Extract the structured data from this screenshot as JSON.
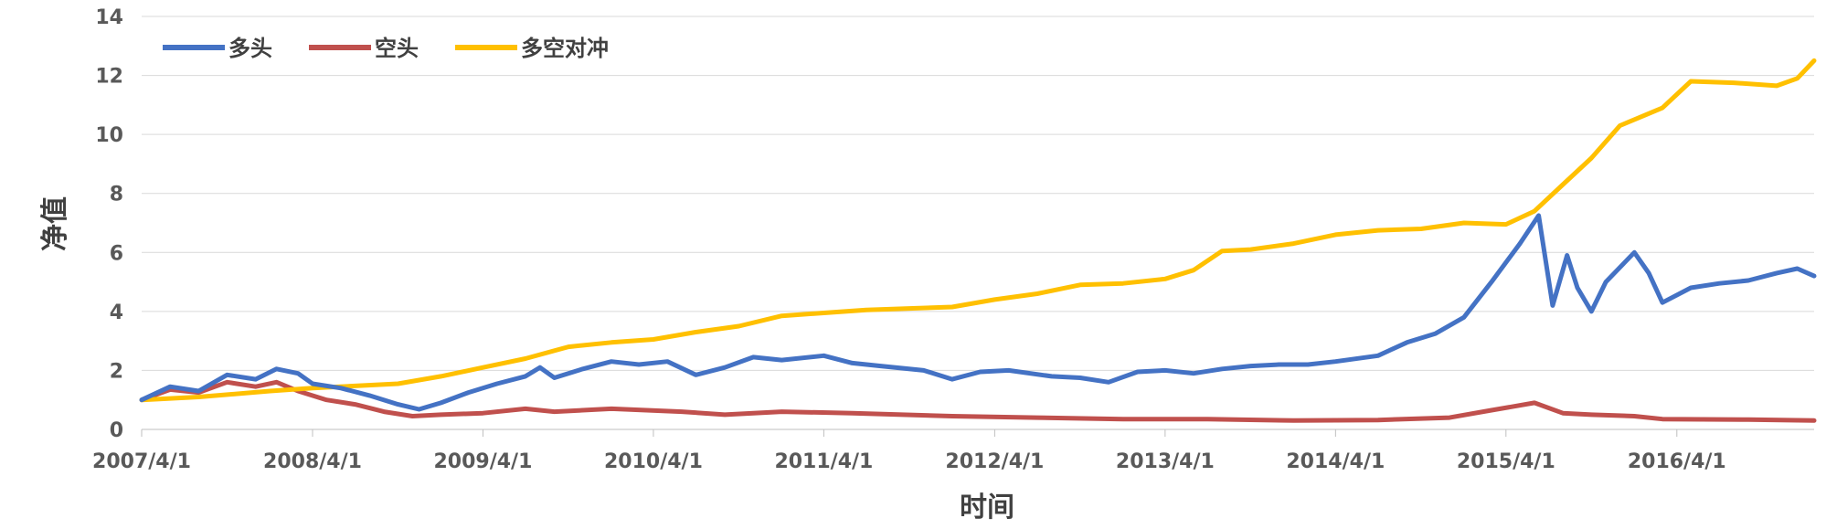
{
  "chart_data": {
    "type": "line",
    "title": "",
    "xlabel": "时间",
    "ylabel": "净值",
    "ylim": [
      0,
      14
    ],
    "yticks": [
      0,
      2,
      4,
      6,
      8,
      10,
      12,
      14
    ],
    "xticks": [
      "2007/4/1",
      "2008/4/1",
      "2009/4/1",
      "2010/4/1",
      "2011/4/1",
      "2012/4/1",
      "2013/4/1",
      "2014/4/1",
      "2015/4/1",
      "2016/4/1"
    ],
    "xlim": [
      "2007/4/1",
      "2017/1/20"
    ],
    "grid": "horizontal",
    "legend": "top-left",
    "series": [
      {
        "name": "多头",
        "color": "#4472C4",
        "points": [
          [
            "2007/4/1",
            1.0
          ],
          [
            "2007/6/1",
            1.45
          ],
          [
            "2007/8/1",
            1.3
          ],
          [
            "2007/10/1",
            1.85
          ],
          [
            "2007/12/1",
            1.7
          ],
          [
            "2008/1/15",
            2.05
          ],
          [
            "2008/3/1",
            1.9
          ],
          [
            "2008/4/1",
            1.55
          ],
          [
            "2008/6/1",
            1.4
          ],
          [
            "2008/8/1",
            1.15
          ],
          [
            "2008/10/1",
            0.85
          ],
          [
            "2008/11/15",
            0.68
          ],
          [
            "2009/1/1",
            0.9
          ],
          [
            "2009/3/1",
            1.25
          ],
          [
            "2009/5/1",
            1.55
          ],
          [
            "2009/7/1",
            1.8
          ],
          [
            "2009/8/1",
            2.1
          ],
          [
            "2009/9/1",
            1.75
          ],
          [
            "2009/11/1",
            2.05
          ],
          [
            "2010/1/1",
            2.3
          ],
          [
            "2010/3/1",
            2.2
          ],
          [
            "2010/5/1",
            2.3
          ],
          [
            "2010/7/1",
            1.85
          ],
          [
            "2010/9/1",
            2.1
          ],
          [
            "2010/11/1",
            2.45
          ],
          [
            "2011/1/1",
            2.35
          ],
          [
            "2011/4/1",
            2.5
          ],
          [
            "2011/6/1",
            2.25
          ],
          [
            "2011/8/1",
            2.15
          ],
          [
            "2011/11/1",
            2.0
          ],
          [
            "2012/1/1",
            1.7
          ],
          [
            "2012/3/1",
            1.95
          ],
          [
            "2012/5/1",
            2.0
          ],
          [
            "2012/8/1",
            1.8
          ],
          [
            "2012/10/1",
            1.75
          ],
          [
            "2012/12/1",
            1.6
          ],
          [
            "2013/2/1",
            1.95
          ],
          [
            "2013/4/1",
            2.0
          ],
          [
            "2013/6/1",
            1.9
          ],
          [
            "2013/8/1",
            2.05
          ],
          [
            "2013/10/1",
            2.15
          ],
          [
            "2013/12/1",
            2.2
          ],
          [
            "2014/2/1",
            2.2
          ],
          [
            "2014/4/1",
            2.3
          ],
          [
            "2014/7/1",
            2.5
          ],
          [
            "2014/9/1",
            2.95
          ],
          [
            "2014/11/1",
            3.25
          ],
          [
            "2015/1/1",
            3.8
          ],
          [
            "2015/3/1",
            5.0
          ],
          [
            "2015/5/1",
            6.3
          ],
          [
            "2015/6/10",
            7.25
          ],
          [
            "2015/7/10",
            4.2
          ],
          [
            "2015/8/10",
            5.9
          ],
          [
            "2015/9/1",
            4.8
          ],
          [
            "2015/10/1",
            4.0
          ],
          [
            "2015/11/1",
            5.0
          ],
          [
            "2016/1/1",
            6.0
          ],
          [
            "2016/2/1",
            5.3
          ],
          [
            "2016/3/1",
            4.3
          ],
          [
            "2016/5/1",
            4.8
          ],
          [
            "2016/7/1",
            4.95
          ],
          [
            "2016/9/1",
            5.05
          ],
          [
            "2016/11/1",
            5.3
          ],
          [
            "2016/12/15",
            5.45
          ],
          [
            "2017/1/20",
            5.2
          ]
        ]
      },
      {
        "name": "空头",
        "color": "#C0504D",
        "points": [
          [
            "2007/4/1",
            1.0
          ],
          [
            "2007/6/1",
            1.35
          ],
          [
            "2007/8/1",
            1.25
          ],
          [
            "2007/10/1",
            1.6
          ],
          [
            "2007/12/1",
            1.45
          ],
          [
            "2008/1/15",
            1.6
          ],
          [
            "2008/3/1",
            1.3
          ],
          [
            "2008/5/1",
            1.0
          ],
          [
            "2008/7/1",
            0.85
          ],
          [
            "2008/9/1",
            0.6
          ],
          [
            "2008/11/1",
            0.45
          ],
          [
            "2009/1/1",
            0.5
          ],
          [
            "2009/4/1",
            0.55
          ],
          [
            "2009/7/1",
            0.7
          ],
          [
            "2009/9/1",
            0.6
          ],
          [
            "2010/1/1",
            0.7
          ],
          [
            "2010/6/1",
            0.6
          ],
          [
            "2010/9/1",
            0.5
          ],
          [
            "2011/1/1",
            0.6
          ],
          [
            "2011/6/1",
            0.55
          ],
          [
            "2012/1/1",
            0.45
          ],
          [
            "2012/7/1",
            0.4
          ],
          [
            "2013/1/1",
            0.35
          ],
          [
            "2013/7/1",
            0.35
          ],
          [
            "2014/1/1",
            0.3
          ],
          [
            "2014/7/1",
            0.32
          ],
          [
            "2014/12/1",
            0.4
          ],
          [
            "2015/3/1",
            0.65
          ],
          [
            "2015/6/1",
            0.9
          ],
          [
            "2015/8/1",
            0.55
          ],
          [
            "2015/10/1",
            0.5
          ],
          [
            "2016/1/1",
            0.45
          ],
          [
            "2016/3/1",
            0.35
          ],
          [
            "2016/9/1",
            0.33
          ],
          [
            "2017/1/20",
            0.3
          ]
        ]
      },
      {
        "name": "多空对冲",
        "color": "#FFC000",
        "points": [
          [
            "2007/4/1",
            1.0
          ],
          [
            "2007/8/1",
            1.1
          ],
          [
            "2008/1/1",
            1.3
          ],
          [
            "2008/4/1",
            1.4
          ],
          [
            "2008/10/1",
            1.55
          ],
          [
            "2009/1/1",
            1.8
          ],
          [
            "2009/4/1",
            2.1
          ],
          [
            "2009/7/1",
            2.4
          ],
          [
            "2009/10/1",
            2.8
          ],
          [
            "2010/1/1",
            2.95
          ],
          [
            "2010/4/1",
            3.05
          ],
          [
            "2010/7/1",
            3.3
          ],
          [
            "2010/10/1",
            3.5
          ],
          [
            "2011/1/1",
            3.85
          ],
          [
            "2011/4/1",
            3.95
          ],
          [
            "2011/7/1",
            4.05
          ],
          [
            "2011/10/1",
            4.1
          ],
          [
            "2012/1/1",
            4.15
          ],
          [
            "2012/4/1",
            4.4
          ],
          [
            "2012/7/1",
            4.6
          ],
          [
            "2012/10/1",
            4.9
          ],
          [
            "2013/1/1",
            4.95
          ],
          [
            "2013/4/1",
            5.1
          ],
          [
            "2013/6/1",
            5.4
          ],
          [
            "2013/8/1",
            6.05
          ],
          [
            "2013/10/1",
            6.1
          ],
          [
            "2014/1/1",
            6.3
          ],
          [
            "2014/4/1",
            6.6
          ],
          [
            "2014/7/1",
            6.75
          ],
          [
            "2014/10/1",
            6.8
          ],
          [
            "2015/1/1",
            7.0
          ],
          [
            "2015/4/1",
            6.95
          ],
          [
            "2015/6/1",
            7.4
          ],
          [
            "2015/8/1",
            8.3
          ],
          [
            "2015/10/1",
            9.2
          ],
          [
            "2015/12/1",
            10.3
          ],
          [
            "2016/3/1",
            10.9
          ],
          [
            "2016/5/1",
            11.8
          ],
          [
            "2016/8/1",
            11.75
          ],
          [
            "2016/11/1",
            11.65
          ],
          [
            "2016/12/15",
            11.9
          ],
          [
            "2017/1/20",
            12.5
          ]
        ]
      }
    ]
  }
}
